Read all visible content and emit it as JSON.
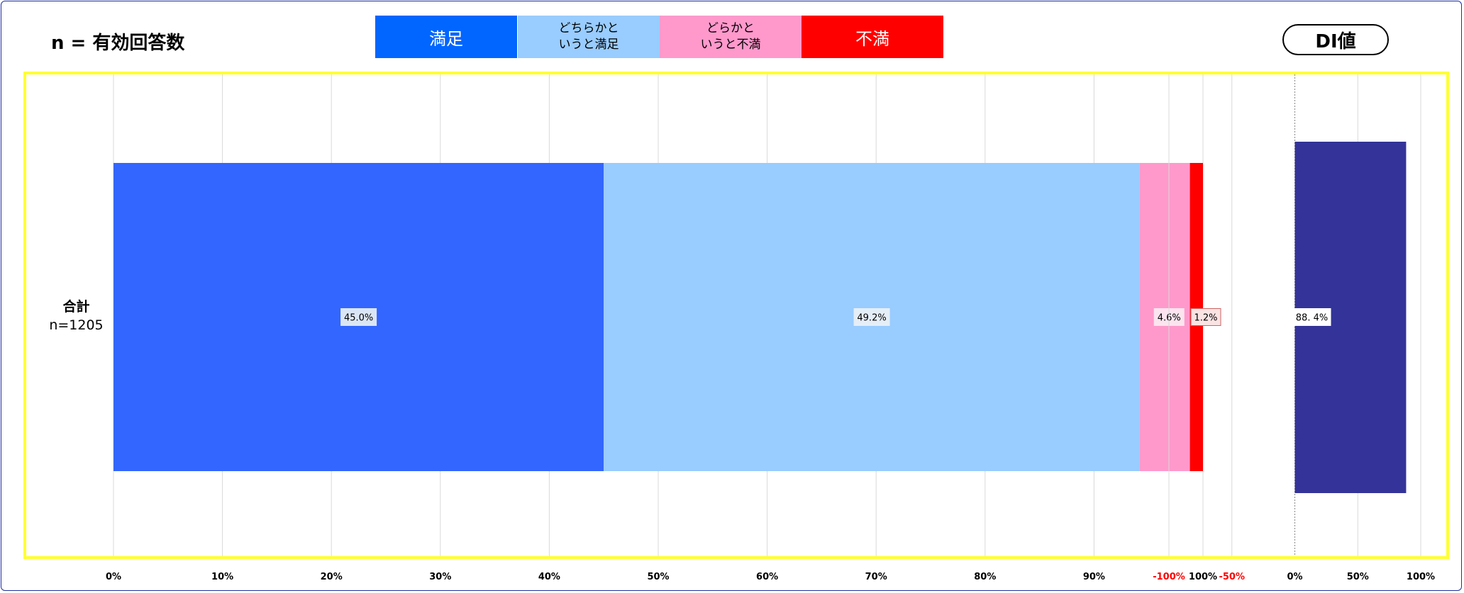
{
  "header": {
    "n_label": "n = 有効回答数",
    "di_label": "DI値"
  },
  "legend": [
    {
      "label": "満足",
      "color": "#0066ff",
      "text_color": "#ffffff"
    },
    {
      "label": "どちらかと\nいうと満足",
      "color": "#99ccff",
      "text_color": "#000000"
    },
    {
      "label": "どらかと\nいうと不満",
      "color": "#ff99cc",
      "text_color": "#000000"
    },
    {
      "label": "不満",
      "color": "#ff0000",
      "text_color": "#ffffff"
    }
  ],
  "category": {
    "name": "合計",
    "n": "n=1205"
  },
  "chart_data": [
    {
      "type": "bar",
      "orientation": "horizontal",
      "stacked": true,
      "categories": [
        "合計"
      ],
      "series": [
        {
          "name": "満足",
          "values": [
            45.0
          ],
          "label": "45.0%",
          "color": "#3366ff"
        },
        {
          "name": "どちらかと\nいうと満足",
          "values": [
            49.2
          ],
          "label": "49.2%",
          "color": "#99ccff"
        },
        {
          "name": "どらかと\nいうと不満",
          "values": [
            4.6
          ],
          "label": "4.6%",
          "color": "#ff99cc"
        },
        {
          "name": "不満",
          "values": [
            1.2
          ],
          "label": "1.2%",
          "color": "#ff0000"
        }
      ],
      "xlim": [
        0,
        100
      ],
      "x_ticks": [
        "0%",
        "10%",
        "20%",
        "30%",
        "40%",
        "50%",
        "60%",
        "70%",
        "80%",
        "90%",
        "100%"
      ],
      "grid": true
    },
    {
      "type": "bar",
      "orientation": "horizontal",
      "title": "DI値",
      "categories": [
        "合計"
      ],
      "series": [
        {
          "values": [
            88.4
          ],
          "label": "88. 4%",
          "color": "#333399"
        }
      ],
      "xlim": [
        -100,
        100
      ],
      "x_ticks": [
        "-100%",
        "-50%",
        "0%",
        "50%",
        "100%"
      ],
      "negative_tick_color": "#ff0000",
      "grid": true
    }
  ]
}
